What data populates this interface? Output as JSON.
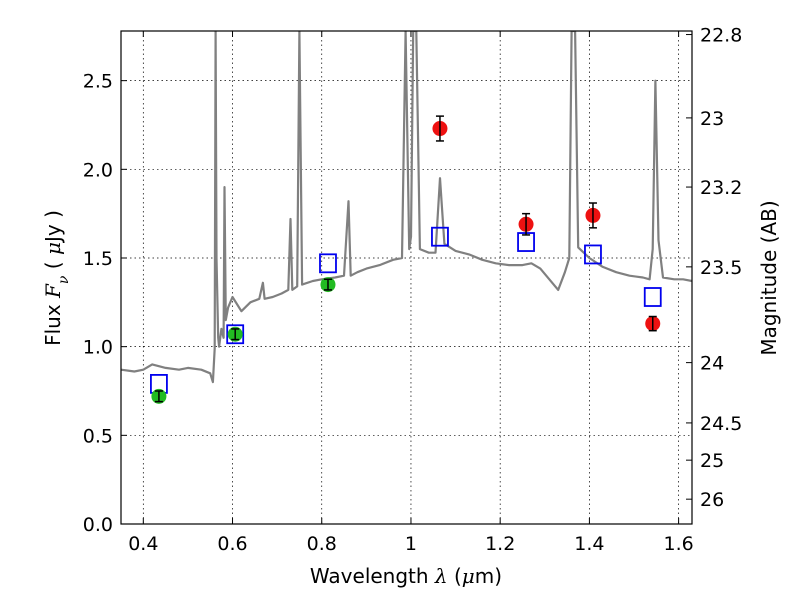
{
  "chart_data": {
    "type": "scatter",
    "xlabel": "Wavelength  λ (μm)",
    "ylabel": "Flux  F_ν  ( μJy )",
    "ylabel_right": "Magnitude (AB)",
    "xlim": [
      0.35,
      1.63
    ],
    "ylim": [
      0.0,
      2.78
    ],
    "grid": true,
    "x_ticks": [
      0.4,
      0.6,
      0.8,
      1.0,
      1.2,
      1.4,
      1.6
    ],
    "x_tick_labels": [
      "0.4",
      "0.6",
      "0.8",
      "1",
      "1.2",
      "1.4",
      "1.6"
    ],
    "y_ticks": [
      0.0,
      0.5,
      1.0,
      1.5,
      2.0,
      2.5
    ],
    "y_tick_labels": [
      "0.0",
      "0.5",
      "1.0",
      "1.5",
      "2.0",
      "2.5"
    ],
    "right_ticks": [
      {
        "flux": 2.76,
        "label": "22.8"
      },
      {
        "flux": 2.29,
        "label": "23"
      },
      {
        "flux": 1.9,
        "label": "23.2"
      },
      {
        "flux": 1.45,
        "label": "23.5"
      },
      {
        "flux": 0.91,
        "label": "24"
      },
      {
        "flux": 0.57,
        "label": "24.5"
      },
      {
        "flux": 0.36,
        "label": "25"
      },
      {
        "flux": 0.14,
        "label": "26"
      }
    ],
    "colors": {
      "spectrum": "#808080",
      "green_points": "#22bb22",
      "red_points": "#ee1111",
      "model_squares": "#0000ee",
      "error_bars": "#000000"
    },
    "series": [
      {
        "marker": "circle-green",
        "points": [
          {
            "x": 0.435,
            "y": 0.72,
            "err": 0.03
          },
          {
            "x": 0.606,
            "y": 1.07,
            "err": 0.03
          },
          {
            "x": 0.814,
            "y": 1.35,
            "err": 0.03
          }
        ]
      },
      {
        "marker": "circle-red",
        "points": [
          {
            "x": 1.065,
            "y": 2.23,
            "err": 0.07
          },
          {
            "x": 1.258,
            "y": 1.69,
            "err": 0.06
          },
          {
            "x": 1.408,
            "y": 1.74,
            "err": 0.07
          },
          {
            "x": 1.542,
            "y": 1.13,
            "err": 0.04
          }
        ]
      },
      {
        "marker": "square-blue",
        "points": [
          {
            "x": 0.435,
            "y": 0.79
          },
          {
            "x": 0.606,
            "y": 1.07
          },
          {
            "x": 0.814,
            "y": 1.47
          },
          {
            "x": 1.065,
            "y": 1.62
          },
          {
            "x": 1.258,
            "y": 1.59
          },
          {
            "x": 1.408,
            "y": 1.52
          },
          {
            "x": 1.542,
            "y": 1.28
          }
        ]
      },
      {
        "marker": "line-gray",
        "points": [
          [
            0.35,
            0.87
          ],
          [
            0.38,
            0.86
          ],
          [
            0.4,
            0.87
          ],
          [
            0.42,
            0.9
          ],
          [
            0.45,
            0.88
          ],
          [
            0.48,
            0.87
          ],
          [
            0.5,
            0.88
          ],
          [
            0.53,
            0.87
          ],
          [
            0.55,
            0.85
          ],
          [
            0.556,
            0.8
          ],
          [
            0.56,
            0.99
          ],
          [
            0.562,
            2.78
          ],
          [
            0.564,
            1.5
          ],
          [
            0.568,
            1.05
          ],
          [
            0.57,
            1.0
          ],
          [
            0.575,
            1.1
          ],
          [
            0.58,
            1.05
          ],
          [
            0.582,
            1.9
          ],
          [
            0.585,
            1.15
          ],
          [
            0.59,
            1.22
          ],
          [
            0.6,
            1.28
          ],
          [
            0.62,
            1.2
          ],
          [
            0.64,
            1.25
          ],
          [
            0.66,
            1.27
          ],
          [
            0.668,
            1.36
          ],
          [
            0.672,
            1.27
          ],
          [
            0.69,
            1.28
          ],
          [
            0.71,
            1.3
          ],
          [
            0.725,
            1.32
          ],
          [
            0.73,
            1.72
          ],
          [
            0.734,
            1.32
          ],
          [
            0.745,
            1.34
          ],
          [
            0.75,
            2.78
          ],
          [
            0.756,
            1.35
          ],
          [
            0.78,
            1.37
          ],
          [
            0.8,
            1.38
          ],
          [
            0.83,
            1.39
          ],
          [
            0.85,
            1.4
          ],
          [
            0.86,
            1.82
          ],
          [
            0.865,
            1.4
          ],
          [
            0.88,
            1.42
          ],
          [
            0.9,
            1.44
          ],
          [
            0.93,
            1.46
          ],
          [
            0.96,
            1.49
          ],
          [
            0.98,
            1.5
          ],
          [
            0.988,
            2.78
          ],
          [
            0.996,
            1.55
          ],
          [
            1.0,
            1.62
          ],
          [
            1.005,
            2.78
          ],
          [
            1.012,
            2.78
          ],
          [
            1.02,
            1.55
          ],
          [
            1.04,
            1.53
          ],
          [
            1.055,
            1.53
          ],
          [
            1.065,
            1.95
          ],
          [
            1.075,
            1.58
          ],
          [
            1.1,
            1.54
          ],
          [
            1.13,
            1.52
          ],
          [
            1.16,
            1.49
          ],
          [
            1.19,
            1.47
          ],
          [
            1.22,
            1.46
          ],
          [
            1.25,
            1.46
          ],
          [
            1.27,
            1.47
          ],
          [
            1.29,
            1.44
          ],
          [
            1.31,
            1.38
          ],
          [
            1.33,
            1.32
          ],
          [
            1.345,
            1.42
          ],
          [
            1.355,
            1.5
          ],
          [
            1.36,
            2.78
          ],
          [
            1.368,
            2.78
          ],
          [
            1.375,
            1.56
          ],
          [
            1.4,
            1.5
          ],
          [
            1.43,
            1.45
          ],
          [
            1.46,
            1.42
          ],
          [
            1.49,
            1.4
          ],
          [
            1.52,
            1.39
          ],
          [
            1.535,
            1.38
          ],
          [
            1.542,
            1.55
          ],
          [
            1.548,
            2.5
          ],
          [
            1.555,
            1.6
          ],
          [
            1.565,
            1.39
          ],
          [
            1.59,
            1.38
          ],
          [
            1.61,
            1.38
          ],
          [
            1.63,
            1.37
          ]
        ]
      }
    ]
  }
}
